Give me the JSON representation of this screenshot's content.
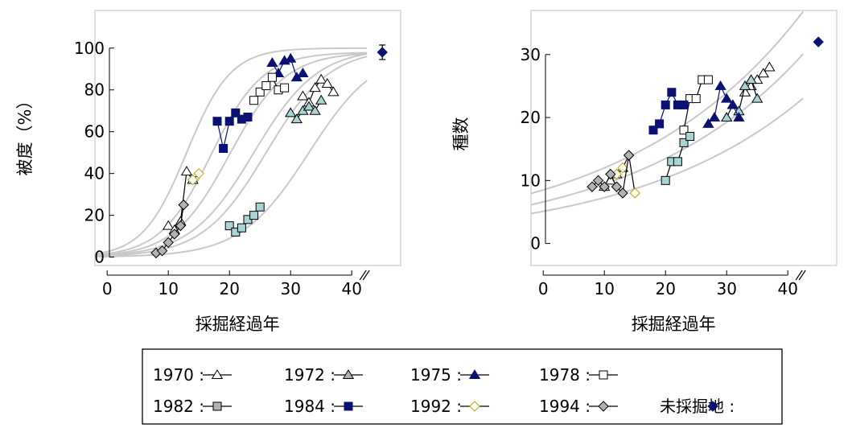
{
  "colors": {
    "navy": "#0a1172",
    "teal": "#a8d4d4",
    "gray": "#b2b2b2",
    "yellow": "#b8a800",
    "curve": "#c8c8c8",
    "frame": "#c8c8c8"
  },
  "chart_data": [
    {
      "type": "scatter",
      "ylabel": "被度（%）",
      "xlabel": "採掘経過年",
      "xlim": [
        -2,
        48
      ],
      "ylim": [
        -4,
        118
      ],
      "xticks": [
        "0",
        "10",
        "20",
        "30",
        "40"
      ],
      "yticks": [
        "0",
        "20",
        "40",
        "60",
        "80",
        "100"
      ],
      "series": [
        {
          "name": "1970",
          "marker": "tri",
          "fill": "#ffffff",
          "stroke": "#000000",
          "points": [
            [
              10,
              15
            ],
            [
              11,
              13
            ],
            [
              12,
              17
            ],
            [
              13,
              41
            ],
            [
              14,
              37
            ]
          ]
        },
        {
          "name": "1970",
          "marker": "tri",
          "fill": "#ffffff",
          "stroke": "#000000",
          "points": [
            [
              32,
              77
            ],
            [
              33,
              74
            ],
            [
              34,
              81
            ],
            [
              35,
              85
            ],
            [
              36,
              83
            ],
            [
              37,
              79
            ]
          ]
        },
        {
          "name": "1972",
          "marker": "tri",
          "fill": "#a8d4d4",
          "stroke": "#000000",
          "points": [
            [
              30,
              69
            ],
            [
              31,
              66
            ],
            [
              32,
              70
            ],
            [
              33,
              72
            ],
            [
              34,
              70
            ],
            [
              35,
              75
            ]
          ]
        },
        {
          "name": "1975",
          "marker": "tri",
          "fill": "#0a1172",
          "stroke": "#0a1172",
          "points": [
            [
              27,
              93
            ],
            [
              28,
              88
            ],
            [
              29,
              94
            ],
            [
              30,
              95
            ],
            [
              31,
              86
            ],
            [
              32,
              88
            ]
          ]
        },
        {
          "name": "1978",
          "marker": "sq",
          "fill": "#ffffff",
          "stroke": "#000000",
          "points": [
            [
              24,
              75
            ],
            [
              25,
              79
            ],
            [
              26,
              82
            ],
            [
              27,
              86
            ],
            [
              28,
              80
            ],
            [
              29,
              81
            ]
          ]
        },
        {
          "name": "1982",
          "marker": "sq",
          "fill": "#a8d4d4",
          "stroke": "#000000",
          "points": [
            [
              20,
              15
            ],
            [
              21,
              12
            ],
            [
              22,
              14
            ],
            [
              23,
              18
            ],
            [
              24,
              20
            ],
            [
              25,
              24
            ]
          ]
        },
        {
          "name": "1984",
          "marker": "sq",
          "fill": "#0a1172",
          "stroke": "#0a1172",
          "points": [
            [
              18,
              65
            ],
            [
              19,
              52
            ],
            [
              20,
              65
            ],
            [
              21,
              69
            ],
            [
              22,
              66
            ],
            [
              23,
              67
            ]
          ]
        },
        {
          "name": "1992",
          "marker": "dia",
          "fill": "#ffffff",
          "stroke": "#b8a800",
          "points": [
            [
              14,
              37
            ],
            [
              15,
              40
            ]
          ]
        },
        {
          "name": "1994",
          "marker": "dia",
          "fill": "#b2b2b2",
          "stroke": "#000000",
          "points": [
            [
              8,
              2
            ],
            [
              9,
              3
            ],
            [
              10,
              7
            ],
            [
              11,
              11
            ],
            [
              12,
              15
            ],
            [
              12.5,
              25
            ]
          ]
        },
        {
          "name": "未採掘地",
          "marker": "dia",
          "fill": "#0a1172",
          "stroke": "#0a1172",
          "points": [
            [
              45,
              98
            ]
          ]
        }
      ],
      "curves": [
        {
          "model": "logistic",
          "k": 100,
          "x0": 13,
          "s": 3.6
        },
        {
          "model": "logistic",
          "k": 98,
          "x0": 17,
          "s": 4.2
        },
        {
          "model": "logistic",
          "k": 98,
          "x0": 20,
          "s": 4.6
        },
        {
          "model": "logistic",
          "k": 100,
          "x0": 24,
          "s": 5.2
        },
        {
          "model": "logistic",
          "k": 100,
          "x0": 26,
          "s": 5.2
        },
        {
          "model": "logistic",
          "k": 100,
          "x0": 33,
          "s": 5.6
        }
      ]
    },
    {
      "type": "scatter",
      "ylabel": "種数",
      "xlabel": "採掘経過年",
      "xlim": [
        -2,
        48
      ],
      "ylim": [
        -3.5,
        37
      ],
      "xticks": [
        "0",
        "10",
        "20",
        "30",
        "40"
      ],
      "yticks": [
        "0",
        "10",
        "20",
        "30"
      ],
      "series": [
        {
          "name": "1970",
          "marker": "tri",
          "fill": "#ffffff",
          "stroke": "#000000",
          "points": [
            [
              10,
              9
            ],
            [
              11,
              10
            ],
            [
              12,
              11
            ],
            [
              13,
              12
            ]
          ]
        },
        {
          "name": "1970",
          "marker": "tri",
          "fill": "#ffffff",
          "stroke": "#000000",
          "points": [
            [
              33,
              24
            ],
            [
              34,
              25
            ],
            [
              35,
              26
            ],
            [
              36,
              27
            ],
            [
              37,
              28
            ]
          ]
        },
        {
          "name": "1972",
          "marker": "tri",
          "fill": "#a8d4d4",
          "stroke": "#000000",
          "points": [
            [
              30,
              20
            ],
            [
              31,
              22
            ],
            [
              32,
              21
            ],
            [
              33,
              25
            ],
            [
              34,
              26
            ],
            [
              35,
              23
            ]
          ]
        },
        {
          "name": "1975",
          "marker": "tri",
          "fill": "#0a1172",
          "stroke": "#0a1172",
          "points": [
            [
              27,
              19
            ],
            [
              28,
              20
            ],
            [
              29,
              25
            ],
            [
              30,
              23
            ],
            [
              31,
              22
            ],
            [
              32,
              20
            ]
          ]
        },
        {
          "name": "1978",
          "marker": "sq",
          "fill": "#ffffff",
          "stroke": "#000000",
          "points": [
            [
              23,
              18
            ],
            [
              24,
              23
            ],
            [
              25,
              23
            ],
            [
              26,
              26
            ],
            [
              27,
              26
            ]
          ]
        },
        {
          "name": "1982",
          "marker": "sq",
          "fill": "#a8d4d4",
          "stroke": "#000000",
          "points": [
            [
              20,
              10
            ],
            [
              21,
              13
            ],
            [
              22,
              13
            ],
            [
              23,
              16
            ],
            [
              24,
              17
            ]
          ]
        },
        {
          "name": "1984",
          "marker": "sq",
          "fill": "#0a1172",
          "stroke": "#0a1172",
          "points": [
            [
              18,
              18
            ],
            [
              19,
              19
            ],
            [
              20,
              22
            ],
            [
              21,
              24
            ],
            [
              22,
              22
            ],
            [
              23,
              22
            ]
          ]
        },
        {
          "name": "1992",
          "marker": "dia",
          "fill": "#ffffff",
          "stroke": "#b8a800",
          "points": [
            [
              12,
              11
            ],
            [
              13,
              12
            ],
            [
              14,
              14
            ],
            [
              15,
              8
            ]
          ]
        },
        {
          "name": "1994",
          "marker": "dia",
          "fill": "#b2b2b2",
          "stroke": "#000000",
          "points": [
            [
              8,
              9
            ],
            [
              9,
              10
            ],
            [
              10,
              9
            ],
            [
              11,
              11
            ],
            [
              12,
              9
            ],
            [
              13,
              8
            ],
            [
              14,
              14
            ]
          ]
        },
        {
          "name": "未採掘地",
          "marker": "dia",
          "fill": "#0a1172",
          "stroke": "#0a1172",
          "points": [
            [
              45,
              32
            ]
          ]
        }
      ],
      "curves": [
        {
          "model": "exp",
          "a": 8.5,
          "b": 0.0345
        },
        {
          "model": "exp",
          "a": 6.6,
          "b": 0.0357
        },
        {
          "model": "exp",
          "a": 5.1,
          "b": 0.0355
        }
      ]
    }
  ],
  "legend": {
    "rows": [
      [
        {
          "label": "1970 :",
          "marker": "tri",
          "fill": "#ffffff",
          "stroke": "#000000",
          "line": true
        },
        {
          "label": "1972 :",
          "marker": "tri",
          "fill": "#b2b2b2",
          "stroke": "#000000",
          "line": true
        },
        {
          "label": "1975 :",
          "marker": "tri",
          "fill": "#0a1172",
          "stroke": "#0a1172",
          "line": true
        },
        {
          "label": "1978 :",
          "marker": "sq",
          "fill": "#ffffff",
          "stroke": "#000000",
          "line": true
        }
      ],
      [
        {
          "label": "1982 :",
          "marker": "sq",
          "fill": "#b2b2b2",
          "stroke": "#000000",
          "line": true
        },
        {
          "label": "1984 :",
          "marker": "sq",
          "fill": "#0a1172",
          "stroke": "#0a1172",
          "line": true
        },
        {
          "label": "1992 :",
          "marker": "dia",
          "fill": "#ffffff",
          "stroke": "#b8a800",
          "line": true
        },
        {
          "label": "1994 :",
          "marker": "dia",
          "fill": "#b2b2b2",
          "stroke": "#000000",
          "line": true
        },
        {
          "label": "未採掘地 :",
          "marker": "dia",
          "fill": "#0a1172",
          "stroke": "#0a1172",
          "line": false
        }
      ]
    ]
  }
}
